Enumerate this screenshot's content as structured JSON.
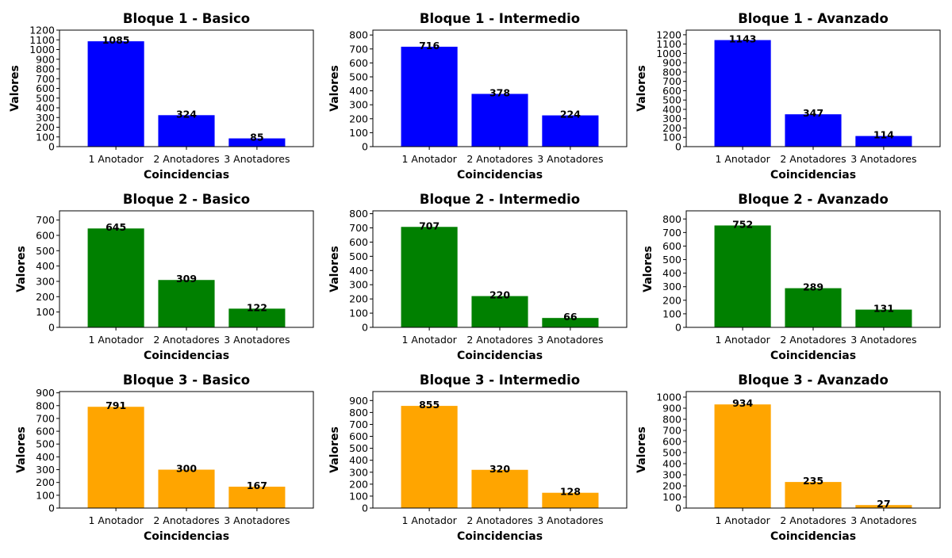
{
  "chart_data": [
    {
      "type": "bar",
      "title": "Bloque 1 - Basico",
      "xlabel": "Coincidencias",
      "ylabel": "Valores",
      "categories": [
        "1 Anotador",
        "2 Anotadores",
        "3 Anotadores"
      ],
      "values": [
        1085,
        324,
        85
      ],
      "color": "#0000ff",
      "ylim": [
        0,
        1200
      ],
      "yticks": [
        0,
        100,
        200,
        300,
        400,
        500,
        600,
        700,
        800,
        900,
        1000,
        1100,
        1200
      ],
      "grid": false
    },
    {
      "type": "bar",
      "title": "Bloque 1 - Intermedio",
      "xlabel": "Coincidencias",
      "ylabel": "Valores",
      "categories": [
        "1 Anotador",
        "2 Anotadores",
        "3 Anotadores"
      ],
      "values": [
        716,
        378,
        224
      ],
      "color": "#0000ff",
      "ylim": [
        0,
        835
      ],
      "yticks": [
        0,
        100,
        200,
        300,
        400,
        500,
        600,
        700,
        800
      ],
      "grid": false
    },
    {
      "type": "bar",
      "title": "Bloque 1 - Avanzado",
      "xlabel": "Coincidencias",
      "ylabel": "Valores",
      "categories": [
        "1 Anotador",
        "2 Anotadores",
        "3 Anotadores"
      ],
      "values": [
        1143,
        347,
        114
      ],
      "color": "#0000ff",
      "ylim": [
        0,
        1250
      ],
      "yticks": [
        0,
        100,
        200,
        300,
        400,
        500,
        600,
        700,
        800,
        900,
        1000,
        1100,
        1200
      ],
      "grid": false
    },
    {
      "type": "bar",
      "title": "Bloque 2 - Basico",
      "xlabel": "Coincidencias",
      "ylabel": "Valores",
      "categories": [
        "1 Anotador",
        "2 Anotadores",
        "3 Anotadores"
      ],
      "values": [
        645,
        309,
        122
      ],
      "color": "#008000",
      "ylim": [
        0,
        760
      ],
      "yticks": [
        0,
        100,
        200,
        300,
        400,
        500,
        600,
        700
      ],
      "grid": false
    },
    {
      "type": "bar",
      "title": "Bloque 2 - Intermedio",
      "xlabel": "Coincidencias",
      "ylabel": "Valores",
      "categories": [
        "1 Anotador",
        "2 Anotadores",
        "3 Anotadores"
      ],
      "values": [
        707,
        220,
        66
      ],
      "color": "#008000",
      "ylim": [
        0,
        820
      ],
      "yticks": [
        0,
        100,
        200,
        300,
        400,
        500,
        600,
        700,
        800
      ],
      "grid": false
    },
    {
      "type": "bar",
      "title": "Bloque 2 - Avanzado",
      "xlabel": "Coincidencias",
      "ylabel": "Valores",
      "categories": [
        "1 Anotador",
        "2 Anotadores",
        "3 Anotadores"
      ],
      "values": [
        752,
        289,
        131
      ],
      "color": "#008000",
      "ylim": [
        0,
        860
      ],
      "yticks": [
        0,
        100,
        200,
        300,
        400,
        500,
        600,
        700,
        800
      ],
      "grid": false
    },
    {
      "type": "bar",
      "title": "Bloque 3 - Basico",
      "xlabel": "Coincidencias",
      "ylabel": "Valores",
      "categories": [
        "1 Anotador",
        "2 Anotadores",
        "3 Anotadores"
      ],
      "values": [
        791,
        300,
        167
      ],
      "color": "#ffa500",
      "ylim": [
        0,
        910
      ],
      "yticks": [
        0,
        100,
        200,
        300,
        400,
        500,
        600,
        700,
        800,
        900
      ],
      "grid": false
    },
    {
      "type": "bar",
      "title": "Bloque 3 - Intermedio",
      "xlabel": "Coincidencias",
      "ylabel": "Valores",
      "categories": [
        "1 Anotador",
        "2 Anotadores",
        "3 Anotadores"
      ],
      "values": [
        855,
        320,
        128
      ],
      "color": "#ffa500",
      "ylim": [
        0,
        975
      ],
      "yticks": [
        0,
        100,
        200,
        300,
        400,
        500,
        600,
        700,
        800,
        900
      ],
      "grid": false
    },
    {
      "type": "bar",
      "title": "Bloque 3 - Avanzado",
      "xlabel": "Coincidencias",
      "ylabel": "Valores",
      "categories": [
        "1 Anotador",
        "2 Anotadores",
        "3 Anotadores"
      ],
      "values": [
        934,
        235,
        27
      ],
      "color": "#ffa500",
      "ylim": [
        0,
        1050
      ],
      "yticks": [
        0,
        100,
        200,
        300,
        400,
        500,
        600,
        700,
        800,
        900,
        1000
      ],
      "grid": false
    }
  ]
}
